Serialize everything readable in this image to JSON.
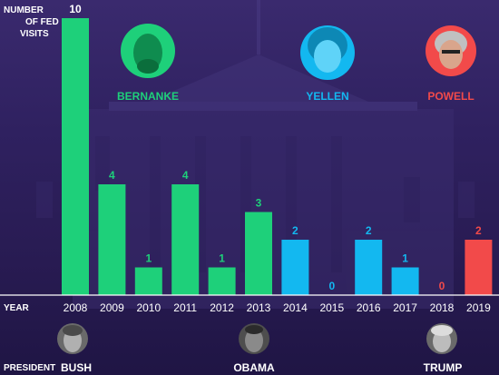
{
  "chart_data": {
    "type": "bar",
    "ylabel": "NUMBER OF FED VISITS",
    "xlabel": "YEAR",
    "categories": [
      "2008",
      "2009",
      "2010",
      "2011",
      "2012",
      "2013",
      "2014",
      "2015",
      "2016",
      "2017",
      "2018",
      "2019"
    ],
    "values": [
      10,
      4,
      1,
      4,
      1,
      3,
      2,
      0,
      2,
      1,
      0,
      2
    ],
    "bar_colors": [
      "#1ed07a",
      "#1ed07a",
      "#1ed07a",
      "#1ed07a",
      "#1ed07a",
      "#1ed07a",
      "#13b8f0",
      "#13b8f0",
      "#13b8f0",
      "#13b8f0",
      "#f24a4a",
      "#f24a4a"
    ],
    "ylim": [
      0,
      10
    ],
    "grid": false,
    "fed_chairs": [
      {
        "name": "BERNANKE",
        "color": "#1ed07a",
        "face_icon": "bernanke-portrait"
      },
      {
        "name": "YELLEN",
        "color": "#13b8f0",
        "face_icon": "yellen-portrait"
      },
      {
        "name": "POWELL",
        "color": "#f24a4a",
        "face_icon": "powell-portrait"
      }
    ],
    "president_label": "PRESIDENT",
    "presidents": [
      {
        "name": "BUSH",
        "face_icon": "bush-portrait"
      },
      {
        "name": "OBAMA",
        "face_icon": "obama-portrait"
      },
      {
        "name": "TRUMP",
        "face_icon": "trump-portrait"
      }
    ]
  }
}
